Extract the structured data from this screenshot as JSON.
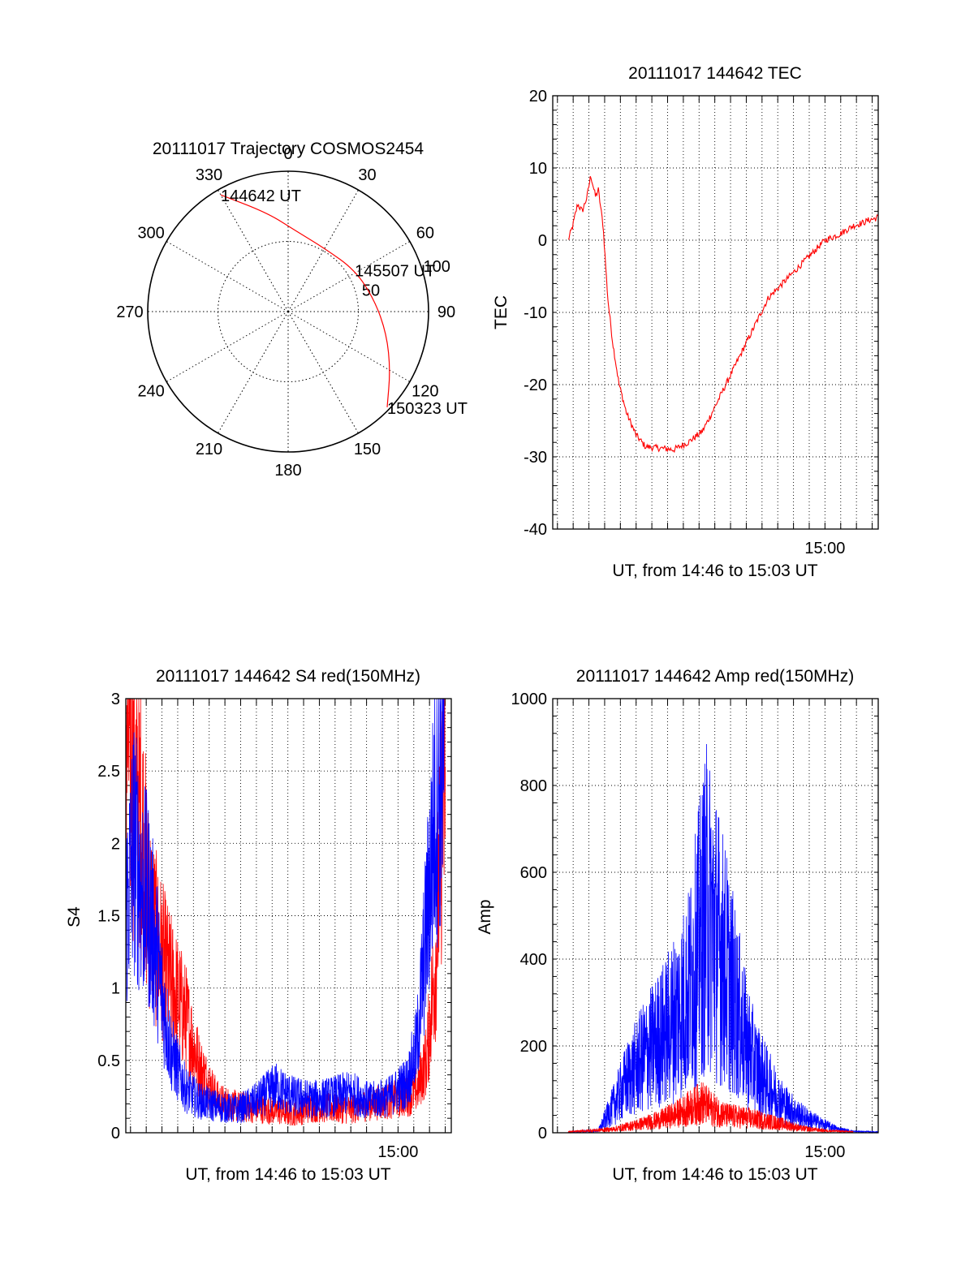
{
  "chart_data": [
    {
      "type": "polar",
      "title": "20111017 Trajectory COSMOS2454",
      "angle_labels": [
        "0",
        "30",
        "60",
        "90",
        "120",
        "150",
        "180",
        "210",
        "240",
        "270",
        "300",
        "330"
      ],
      "radius_labels": [
        "50",
        "100"
      ],
      "rlim": [
        0,
        100
      ],
      "grid": true,
      "series": [
        {
          "color": "#ff0000",
          "points": [
            {
              "az": 330,
              "r": 96
            },
            {
              "az": 348,
              "r": 72
            },
            {
              "az": 5,
              "r": 58
            },
            {
              "az": 30,
              "r": 52
            },
            {
              "az": 58,
              "r": 56
            },
            {
              "az": 82,
              "r": 62
            },
            {
              "az": 103,
              "r": 72
            },
            {
              "az": 120,
              "r": 84
            },
            {
              "az": 134,
              "r": 98
            }
          ]
        }
      ],
      "annotations": [
        {
          "text": "144642 UT",
          "az": 330,
          "r": 96
        },
        {
          "text": "145507 UT",
          "az": 58,
          "r": 56
        },
        {
          "text": "150323 UT",
          "az": 134,
          "r": 98
        }
      ]
    },
    {
      "type": "line",
      "title": "20111017 144642 TEC",
      "xlabel": "UT, from 14:46 to 15:03 UT",
      "ylabel": "TEC",
      "ylim": [
        -40,
        20
      ],
      "yticks": [
        20,
        10,
        0,
        -10,
        -20,
        -30,
        -40
      ],
      "xlim": [
        14.7117,
        15.0564
      ],
      "xtick_labels": [
        {
          "x": 15.0,
          "label": "15:00"
        }
      ],
      "grid": true,
      "series": [
        {
          "color": "#ff0000",
          "x": [
            14.728,
            14.733,
            14.738,
            14.743,
            14.748,
            14.752,
            14.757,
            14.76,
            14.765,
            14.77,
            14.775,
            14.782,
            14.79,
            14.8,
            14.81,
            14.825,
            14.84,
            14.855,
            14.87,
            14.88,
            14.895,
            14.91,
            14.925,
            14.94,
            14.955,
            14.97,
            14.985,
            15.0,
            15.015,
            15.03,
            15.04,
            15.047,
            15.053,
            15.056
          ],
          "y": [
            0,
            2,
            5,
            4,
            6,
            9,
            6,
            7,
            2,
            -8,
            -14,
            -20,
            -24,
            -27,
            -28.6,
            -28.8,
            -29,
            -28,
            -26.5,
            -24,
            -20,
            -16,
            -12,
            -8,
            -6,
            -4,
            -2,
            0,
            0.8,
            2.0,
            2.4,
            2.8,
            3.0,
            3.2
          ]
        }
      ]
    },
    {
      "type": "line",
      "title": "20111017 144642 S4 red(150MHz)",
      "xlabel": "UT, from 14:46 to 15:03 UT",
      "ylabel": "S4",
      "ylim": [
        0,
        3
      ],
      "yticks": [
        0,
        0.5,
        1,
        1.5,
        2,
        2.5,
        3
      ],
      "yticklabels": [
        "0",
        "0.5",
        "1",
        "1.5",
        "2",
        "2.5",
        "3"
      ],
      "xlim": [
        14.7117,
        15.0564
      ],
      "xtick_labels": [
        {
          "x": 15.0,
          "label": "15:00"
        }
      ],
      "grid": true,
      "series": [
        {
          "color": "#ff0000",
          "x": [
            14.7117,
            14.72,
            14.728,
            14.735,
            14.745,
            14.755,
            14.765,
            14.775,
            14.79,
            14.81,
            14.83,
            14.85,
            14.87,
            14.89,
            14.91,
            14.93,
            14.95,
            14.97,
            14.99,
            15.01,
            15.02,
            15.03,
            15.04,
            15.045,
            15.05
          ],
          "y": [
            2.9,
            2.4,
            2.2,
            1.6,
            1.3,
            1.1,
            0.95,
            0.8,
            0.45,
            0.22,
            0.18,
            0.17,
            0.15,
            0.13,
            0.18,
            0.17,
            0.16,
            0.2,
            0.22,
            0.25,
            0.3,
            0.5,
            1.2,
            2.0,
            2.6
          ]
        },
        {
          "color": "#0000ff",
          "x": [
            14.7117,
            14.72,
            14.728,
            14.735,
            14.745,
            14.752,
            14.76,
            14.775,
            14.79,
            14.81,
            14.83,
            14.85,
            14.87,
            14.88,
            14.89,
            14.91,
            14.93,
            14.95,
            14.97,
            14.99,
            15.01,
            15.02,
            15.03,
            15.04,
            15.05
          ],
          "y": [
            1.5,
            2.0,
            1.7,
            1.6,
            1.2,
            0.85,
            0.55,
            0.3,
            0.22,
            0.18,
            0.16,
            0.22,
            0.32,
            0.28,
            0.25,
            0.23,
            0.25,
            0.28,
            0.22,
            0.25,
            0.35,
            0.6,
            1.4,
            2.3,
            2.7
          ]
        }
      ]
    },
    {
      "type": "line",
      "title": "20111017 144642 Amp red(150MHz)",
      "xlabel": "UT, from 14:46 to 15:03 UT",
      "ylabel": "Amp",
      "ylim": [
        0,
        1000
      ],
      "yticks": [
        0,
        200,
        400,
        600,
        800,
        1000
      ],
      "xlim": [
        14.7117,
        15.0564
      ],
      "xtick_labels": [
        {
          "x": 15.0,
          "label": "15:00"
        }
      ],
      "grid": true,
      "series": [
        {
          "color": "#0000ff",
          "x": [
            14.728,
            14.76,
            14.775,
            14.79,
            14.81,
            14.83,
            14.845,
            14.855,
            14.865,
            14.875,
            14.885,
            14.895,
            14.905,
            14.915,
            14.925,
            14.94,
            14.955,
            14.97,
            14.985,
            15.0,
            15.015,
            15.03,
            15.056
          ],
          "y": [
            2,
            5,
            60,
            120,
            180,
            230,
            280,
            320,
            420,
            520,
            450,
            380,
            300,
            220,
            160,
            110,
            70,
            45,
            30,
            18,
            8,
            3,
            2
          ]
        },
        {
          "color": "#ff0000",
          "x": [
            14.728,
            14.775,
            14.8,
            14.825,
            14.845,
            14.86,
            14.87,
            14.88,
            14.895,
            14.915,
            14.935,
            14.955,
            14.975,
            15.0,
            15.03
          ],
          "y": [
            2,
            8,
            18,
            30,
            45,
            60,
            70,
            55,
            40,
            35,
            28,
            20,
            10,
            5,
            2
          ]
        }
      ]
    }
  ]
}
